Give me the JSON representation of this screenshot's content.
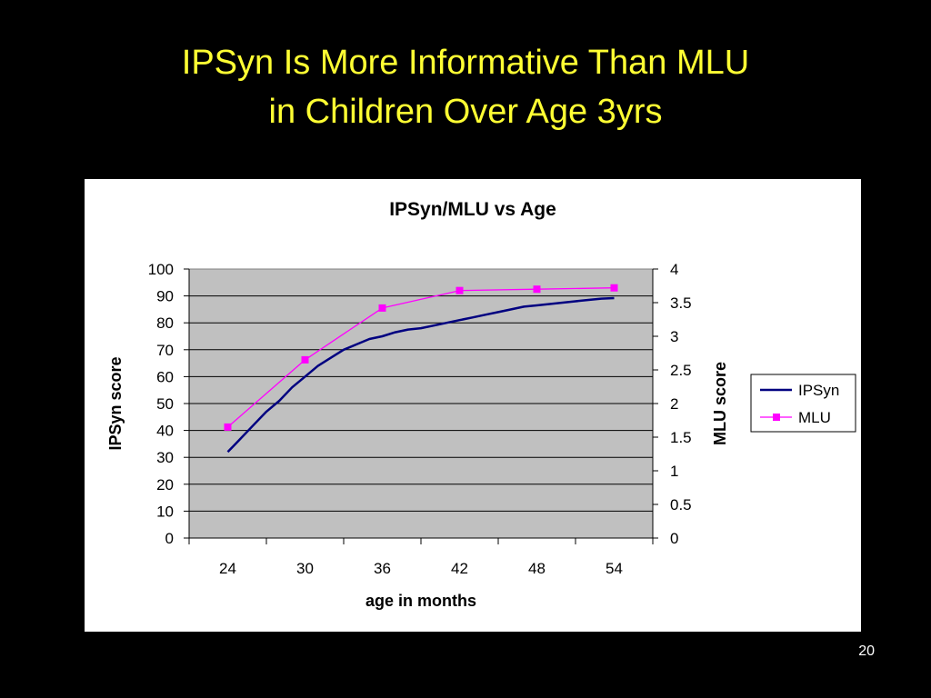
{
  "slide": {
    "title_line1": "IPSyn Is More Informative Than MLU",
    "title_line2": "in Children Over Age 3yrs",
    "page_number": "20"
  },
  "colors": {
    "background": "#000000",
    "title": "#ffff33",
    "plot_area": "#c0c0c0",
    "ipsyn_line": "#000080",
    "mlu_line": "#ff00ff"
  },
  "chart_data": {
    "type": "line",
    "title": "IPSyn/MLU vs Age",
    "xlabel": "age in months",
    "ylabel_left": "IPSyn score",
    "ylabel_right": "MLU score",
    "categories": [
      "24",
      "30",
      "36",
      "42",
      "48",
      "54"
    ],
    "y_left_lim": [
      0,
      100
    ],
    "y_left_ticks": [
      "0",
      "10",
      "20",
      "30",
      "40",
      "50",
      "60",
      "70",
      "80",
      "90",
      "100"
    ],
    "y_right_lim": [
      0,
      4
    ],
    "y_right_ticks": [
      "0",
      "0.5",
      "1",
      "1.5",
      "2",
      "2.5",
      "3",
      "3.5",
      "4"
    ],
    "grid": true,
    "legend_position": "right",
    "series": [
      {
        "name": "IPSyn",
        "axis": "left",
        "color": "#000080",
        "marker": "none",
        "x": [
          24,
          25,
          26,
          27,
          28,
          29,
          30,
          31,
          32,
          33,
          34,
          35,
          36,
          37,
          38,
          39,
          40,
          41,
          42,
          43,
          44,
          45,
          46,
          47,
          48,
          49,
          50,
          51,
          52,
          53,
          54
        ],
        "y": [
          32,
          37,
          42,
          47,
          51,
          56,
          60,
          64,
          67,
          70,
          72,
          74,
          75,
          76.5,
          77.5,
          78,
          79,
          80,
          81,
          82,
          83,
          84,
          85,
          86,
          86.5,
          87,
          87.5,
          88,
          88.5,
          89,
          89.2
        ]
      },
      {
        "name": "MLU",
        "axis": "right",
        "color": "#ff00ff",
        "marker": "square",
        "x": [
          24,
          30,
          36,
          42,
          48,
          54
        ],
        "y": [
          1.65,
          2.65,
          3.42,
          3.68,
          3.7,
          3.72
        ]
      }
    ]
  }
}
